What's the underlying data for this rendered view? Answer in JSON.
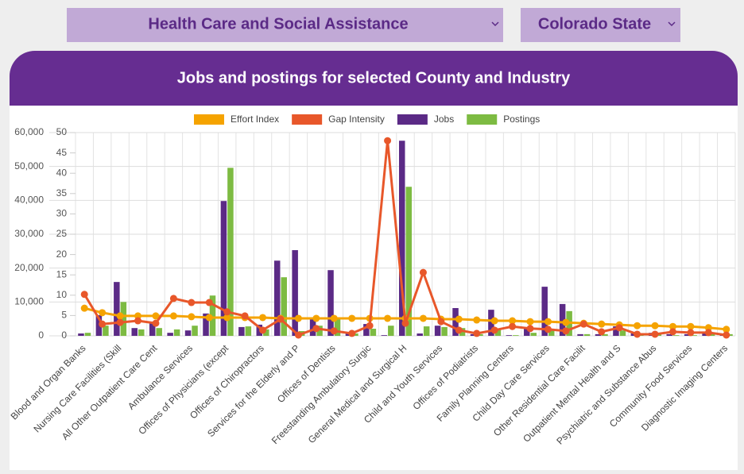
{
  "filters": {
    "industry": "Health Care and Social Assistance",
    "state": "Colorado State"
  },
  "chart_data": {
    "type": "bar",
    "title": "Jobs and postings for selected County and Industry",
    "categories": [
      "Blood and Organ Banks",
      null,
      "Nursing Care Facilities (Skill",
      null,
      "All Other Outpatient Care Cent",
      null,
      "Ambulance Services",
      null,
      "Offices of Physicians (except",
      null,
      "Offices of Chiropractors",
      null,
      "Services for the Elderly and P",
      null,
      "Offices of Dentists",
      null,
      "Freestanding Ambulatory Surgic",
      null,
      "General Medical and Surgical H",
      null,
      "Child and Youth Services",
      null,
      "Offices of Podiatrists",
      null,
      "Family Planning Centers",
      null,
      "Child Day Care Services",
      null,
      "Other Residential Care Facilit",
      null,
      "Outpatient Mental Health and S",
      null,
      "Psychiatric and Substance Abus",
      null,
      "Community Food Services",
      null,
      "Diagnostic Imaging Centers"
    ],
    "series": [
      {
        "name": "Effort Index",
        "type": "line",
        "axis": "y2",
        "color": "#f5a300",
        "values": [
          6.8,
          5.7,
          4.9,
          4.9,
          4.9,
          4.9,
          4.7,
          4.5,
          4.5,
          4.5,
          4.5,
          4.3,
          4.3,
          4.3,
          4.3,
          4.3,
          4.3,
          4.3,
          4.3,
          4.3,
          4.1,
          4.1,
          3.9,
          3.7,
          3.7,
          3.5,
          3.5,
          3.3,
          3.1,
          2.9,
          2.7,
          2.5,
          2.5,
          2.3,
          2.3,
          2.0,
          1.6
        ]
      },
      {
        "name": "Gap Intensity",
        "type": "line",
        "axis": "y2",
        "color": "#e8572a",
        "values": [
          10.2,
          2.9,
          3.3,
          3.7,
          3.1,
          9.2,
          8.2,
          8.2,
          5.9,
          4.9,
          1.4,
          4.1,
          0.2,
          1.8,
          1.2,
          0.6,
          2.5,
          48,
          3.1,
          15.6,
          3.5,
          1.4,
          0.6,
          1.4,
          2.3,
          1.8,
          1.6,
          1.2,
          2.9,
          1.0,
          2.0,
          0.4,
          0.4,
          1.0,
          0.8,
          0.8,
          0.2
        ]
      },
      {
        "name": "Jobs",
        "type": "bar",
        "color": "#5b2a86",
        "values": [
          700,
          6100,
          15900,
          2300,
          4000,
          900,
          1600,
          6600,
          39800,
          2600,
          3300,
          22200,
          25300,
          4900,
          19400,
          700,
          3500,
          200,
          57600,
          700,
          3000,
          8200,
          500,
          7700,
          200,
          2300,
          14500,
          9400,
          500,
          500,
          2800,
          700,
          900,
          500,
          500,
          700,
          500
        ]
      },
      {
        "name": "Postings",
        "type": "bar",
        "color": "#7dbb42",
        "values": [
          900,
          3000,
          10000,
          1900,
          2300,
          1900,
          3000,
          11900,
          49600,
          2800,
          1900,
          17300,
          1400,
          3000,
          4900,
          700,
          2100,
          3000,
          44000,
          2800,
          2600,
          2300,
          500,
          1900,
          200,
          900,
          1900,
          7300,
          500,
          500,
          1600,
          700,
          500,
          200,
          200,
          500,
          500
        ]
      }
    ],
    "ylim": [
      0,
      60000
    ],
    "yticks": [
      0,
      {
        "value": 10000,
        "label": "10,000"
      },
      {
        "value": 20000,
        "label": "20,000"
      },
      {
        "value": 30000,
        "label": "30,000"
      },
      {
        "value": 40000,
        "label": "40,000"
      },
      {
        "value": 50000,
        "label": "50,000"
      },
      {
        "value": 60000,
        "label": "60,000"
      }
    ],
    "y2lim": [
      0,
      50
    ],
    "y2ticks": [
      0,
      5,
      10,
      15,
      20,
      25,
      30,
      35,
      40,
      45,
      50
    ],
    "grid": true,
    "legend": "top"
  }
}
